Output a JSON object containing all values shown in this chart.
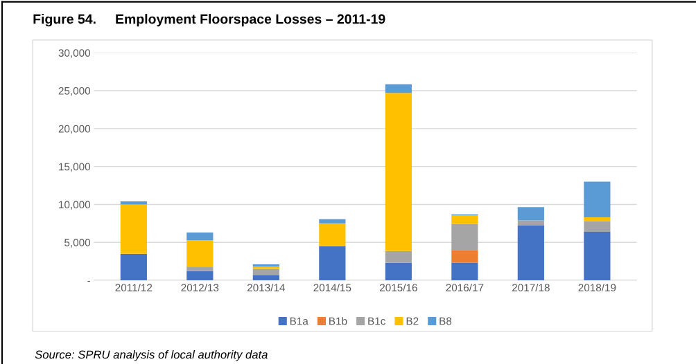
{
  "chart_data": {
    "type": "bar",
    "title": "Figure 54.     Employment Floorspace Losses – 2011-19",
    "categories": [
      "2011/12",
      "2012/13",
      "2013/14",
      "2014/15",
      "2015/16",
      "2016/17",
      "2017/18",
      "2018/19"
    ],
    "stacked": true,
    "series": [
      {
        "name": "B1a",
        "color": "#4472c4",
        "values": [
          3500,
          1200,
          700,
          4500,
          2300,
          2300,
          7200,
          6400
        ]
      },
      {
        "name": "B1b",
        "color": "#ed7d31",
        "values": [
          0,
          0,
          0,
          0,
          0,
          1700,
          0,
          0
        ]
      },
      {
        "name": "B1c",
        "color": "#a5a5a5",
        "values": [
          0,
          600,
          800,
          0,
          1550,
          3450,
          700,
          1400
        ]
      },
      {
        "name": "B2",
        "color": "#ffc000",
        "values": [
          6500,
          3500,
          300,
          3000,
          20850,
          1100,
          0,
          500
        ]
      },
      {
        "name": "B8",
        "color": "#5b9bd5",
        "values": [
          400,
          1000,
          300,
          550,
          1150,
          150,
          1750,
          4700
        ]
      }
    ],
    "ylim": [
      0,
      30000
    ],
    "yticks": [
      {
        "value": 0,
        "label": "-"
      },
      {
        "value": 5000,
        "label": "5,000"
      },
      {
        "value": 10000,
        "label": "10,000"
      },
      {
        "value": 15000,
        "label": "15,000"
      },
      {
        "value": 20000,
        "label": "20,000"
      },
      {
        "value": 25000,
        "label": "25,000"
      },
      {
        "value": 30000,
        "label": "30,000"
      }
    ],
    "grid": "y",
    "legend": "bottom",
    "annotations": [
      "Source: SPRU analysis of local authority data"
    ]
  }
}
